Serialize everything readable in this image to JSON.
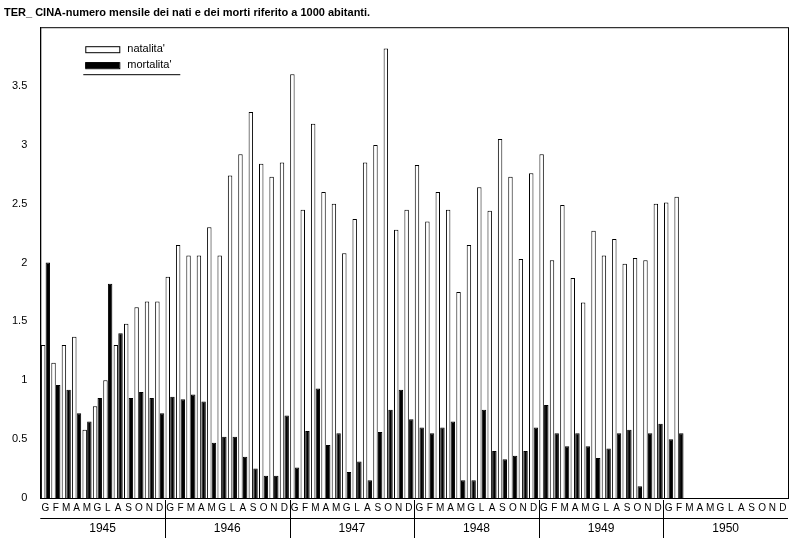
{
  "chart_data": {
    "type": "bar",
    "title": "TER_ CINA-numero mensile dei nati e dei morti riferito a 1000 abitanti.",
    "categories": [
      "G",
      "F",
      "M",
      "A",
      "M",
      "G",
      "L",
      "A",
      "S",
      "O",
      "N",
      "D",
      "G",
      "F",
      "M",
      "A",
      "M",
      "G",
      "L",
      "A",
      "S",
      "O",
      "N",
      "D",
      "G",
      "F",
      "M",
      "A",
      "M",
      "G",
      "L",
      "A",
      "S",
      "O",
      "N",
      "D",
      "G",
      "F",
      "M",
      "A",
      "M",
      "G",
      "L",
      "A",
      "S",
      "O",
      "N",
      "D",
      "G",
      "F",
      "M",
      "A",
      "M",
      "G",
      "L",
      "A",
      "S",
      "O",
      "N",
      "D",
      "G",
      "F",
      "M",
      "A",
      "M",
      "G",
      "L",
      "A",
      "S",
      "O",
      "N",
      "D"
    ],
    "years": [
      "1945",
      "1946",
      "1947",
      "1948",
      "1949",
      "1950"
    ],
    "series": [
      {
        "name": "natalita'",
        "color": "#ffffff",
        "values": [
          1.3,
          1.15,
          1.3,
          1.37,
          0.58,
          0.78,
          1.0,
          1.3,
          1.48,
          1.62,
          1.67,
          1.67,
          1.88,
          2.15,
          2.06,
          2.06,
          2.3,
          2.06,
          2.74,
          2.92,
          3.28,
          2.84,
          2.73,
          2.85,
          3.6,
          2.45,
          3.18,
          2.6,
          2.5,
          2.08,
          2.37,
          2.85,
          3.0,
          3.82,
          2.28,
          2.45,
          2.83,
          2.35,
          2.6,
          2.45,
          1.75,
          2.15,
          2.64,
          2.44,
          3.05,
          2.73,
          2.03,
          2.76,
          2.92,
          2.02,
          2.49,
          1.87,
          1.66,
          2.27,
          2.06,
          2.2,
          1.99,
          2.04,
          2.02,
          2.5,
          2.51,
          2.56,
          null,
          null,
          null,
          null,
          null,
          null,
          null,
          null,
          null,
          null
        ]
      },
      {
        "name": "mortalita'",
        "color": "#000000",
        "values": [
          2.0,
          0.96,
          0.92,
          0.72,
          0.65,
          0.85,
          1.82,
          1.4,
          0.85,
          0.9,
          0.85,
          0.72,
          0.86,
          0.84,
          0.88,
          0.82,
          0.47,
          0.52,
          0.52,
          0.35,
          0.25,
          0.19,
          0.19,
          0.7,
          0.26,
          0.57,
          0.93,
          0.45,
          0.55,
          0.22,
          0.31,
          0.15,
          0.56,
          0.75,
          0.92,
          0.67,
          0.6,
          0.55,
          0.6,
          0.65,
          0.15,
          0.15,
          0.75,
          0.4,
          0.33,
          0.36,
          0.4,
          0.6,
          0.79,
          0.55,
          0.44,
          0.55,
          0.44,
          0.34,
          0.42,
          0.55,
          0.58,
          0.1,
          0.55,
          0.63,
          0.5,
          0.55,
          null,
          null,
          null,
          null,
          null,
          null,
          null,
          null,
          null,
          null
        ]
      }
    ],
    "ylim": [
      0,
      4
    ],
    "yticks": [
      0,
      0.5,
      1,
      1.5,
      2,
      2.5,
      3,
      3.5
    ],
    "grid": false,
    "legend": "upper left"
  }
}
